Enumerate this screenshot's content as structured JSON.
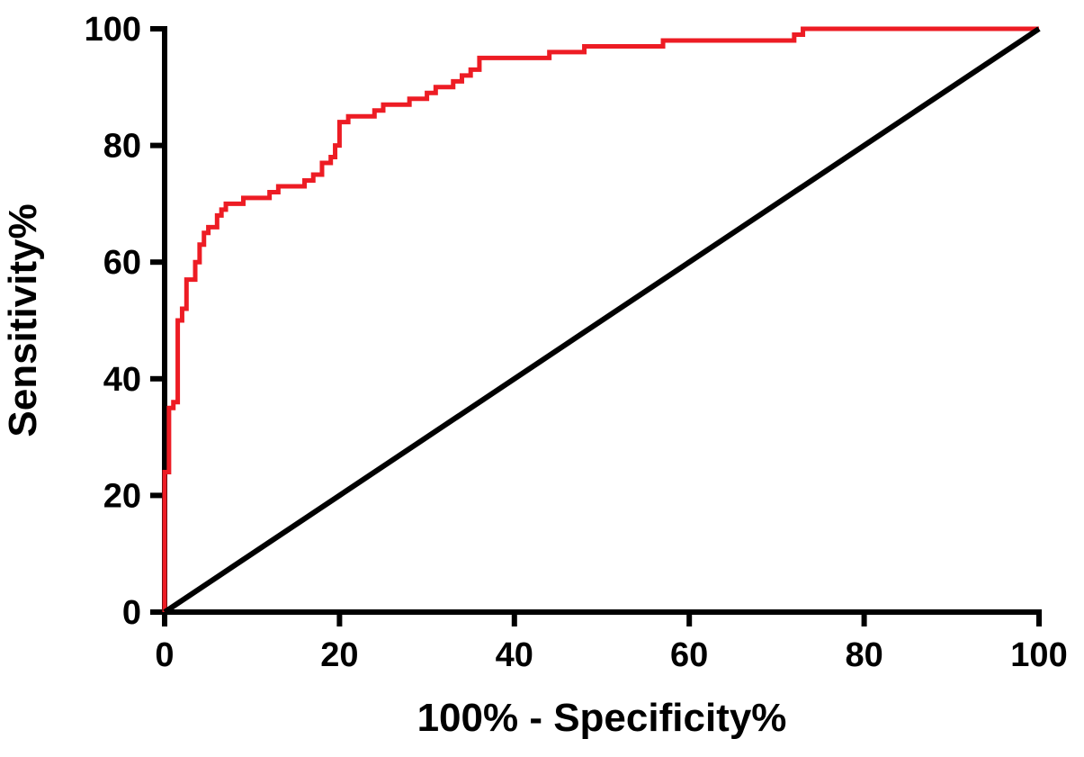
{
  "chart_data": {
    "type": "line",
    "title": "",
    "xlabel": "100% - Specificity%",
    "ylabel": "Sensitivity%",
    "xlim": [
      0,
      100
    ],
    "ylim": [
      0,
      100
    ],
    "xticks": [
      0,
      20,
      40,
      60,
      80,
      100
    ],
    "yticks": [
      0,
      20,
      40,
      60,
      80,
      100
    ],
    "grid": false,
    "legend_position": "none",
    "axis_color": "#000000",
    "series": [
      {
        "name": "roc-curve",
        "color": "#ed1c24",
        "line_width": 5,
        "step": true,
        "points": [
          [
            0,
            0
          ],
          [
            0,
            24
          ],
          [
            0.5,
            24
          ],
          [
            0.5,
            35
          ],
          [
            1,
            35
          ],
          [
            1,
            36
          ],
          [
            1.5,
            36
          ],
          [
            1.5,
            50
          ],
          [
            2,
            50
          ],
          [
            2,
            52
          ],
          [
            2.5,
            52
          ],
          [
            2.5,
            57
          ],
          [
            3,
            57
          ],
          [
            3.5,
            57
          ],
          [
            3.5,
            60
          ],
          [
            4,
            60
          ],
          [
            4,
            63
          ],
          [
            4.5,
            63
          ],
          [
            4.5,
            65
          ],
          [
            5,
            65
          ],
          [
            5,
            66
          ],
          [
            6,
            66
          ],
          [
            6,
            68
          ],
          [
            6.5,
            68
          ],
          [
            6.5,
            69
          ],
          [
            7,
            69
          ],
          [
            7,
            70
          ],
          [
            9,
            70
          ],
          [
            9,
            71
          ],
          [
            12,
            71
          ],
          [
            12,
            72
          ],
          [
            13,
            72
          ],
          [
            13,
            73
          ],
          [
            16,
            73
          ],
          [
            16,
            74
          ],
          [
            17,
            74
          ],
          [
            17,
            75
          ],
          [
            18,
            75
          ],
          [
            18,
            77
          ],
          [
            19,
            77
          ],
          [
            19,
            78
          ],
          [
            19.5,
            78
          ],
          [
            19.5,
            80
          ],
          [
            20,
            80
          ],
          [
            20,
            84
          ],
          [
            21,
            84
          ],
          [
            21,
            85
          ],
          [
            24,
            85
          ],
          [
            24,
            86
          ],
          [
            25,
            86
          ],
          [
            25,
            87
          ],
          [
            28,
            87
          ],
          [
            28,
            88
          ],
          [
            30,
            88
          ],
          [
            30,
            89
          ],
          [
            31,
            89
          ],
          [
            31,
            90
          ],
          [
            33,
            90
          ],
          [
            33,
            91
          ],
          [
            34,
            91
          ],
          [
            34,
            92
          ],
          [
            35,
            92
          ],
          [
            35,
            93
          ],
          [
            36,
            93
          ],
          [
            36,
            95
          ],
          [
            44,
            95
          ],
          [
            44,
            96
          ],
          [
            48,
            96
          ],
          [
            48,
            97
          ],
          [
            50,
            97
          ],
          [
            57,
            97
          ],
          [
            57,
            98
          ],
          [
            72,
            98
          ],
          [
            72,
            99
          ],
          [
            73,
            99
          ],
          [
            73,
            100
          ],
          [
            75,
            100
          ],
          [
            100,
            100
          ]
        ]
      },
      {
        "name": "identity-reference-line",
        "color": "#000000",
        "line_width": 6,
        "step": false,
        "points": [
          [
            0,
            0
          ],
          [
            100,
            100
          ]
        ]
      }
    ]
  }
}
